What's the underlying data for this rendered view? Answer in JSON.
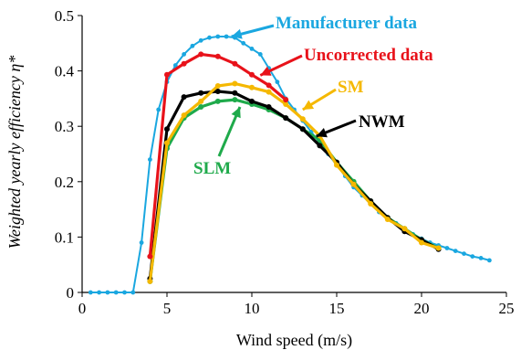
{
  "chart_data": {
    "type": "line",
    "xlabel": "Wind speed (m/s)",
    "ylabel": "Weighted yearly efficiency η*",
    "xlim": [
      0,
      25
    ],
    "ylim": [
      0,
      0.5
    ],
    "xticks": [
      0,
      5,
      10,
      15,
      20,
      25
    ],
    "yticks": [
      0,
      0.1,
      0.2,
      0.3,
      0.4,
      0.5
    ],
    "ytick_labels": [
      "0",
      "0.1",
      "0.2",
      "0.3",
      "0.4",
      "0.5"
    ],
    "grid": false,
    "series": [
      {
        "name": "Manufacturer data",
        "color": "#1aa7e0",
        "x": [
          0.5,
          1,
          1.5,
          2,
          2.5,
          3,
          3.5,
          4,
          4.5,
          5,
          5.5,
          6,
          6.5,
          7,
          7.5,
          8,
          8.5,
          9,
          9.5,
          10,
          10.5,
          11,
          11.5,
          12,
          12.5,
          13,
          13.5,
          14,
          14.5,
          15,
          15.5,
          16,
          16.5,
          17,
          17.5,
          18,
          18.5,
          19,
          19.5,
          20,
          20.5,
          21,
          21.5,
          22,
          22.5,
          23,
          23.5,
          24
        ],
        "y": [
          0,
          0,
          0,
          0,
          0,
          0,
          0.09,
          0.24,
          0.33,
          0.38,
          0.41,
          0.43,
          0.445,
          0.455,
          0.46,
          0.462,
          0.462,
          0.46,
          0.45,
          0.44,
          0.43,
          0.405,
          0.38,
          0.35,
          0.33,
          0.31,
          0.29,
          0.27,
          0.25,
          0.23,
          0.21,
          0.19,
          0.175,
          0.16,
          0.145,
          0.135,
          0.125,
          0.115,
          0.105,
          0.097,
          0.09,
          0.085,
          0.08,
          0.075,
          0.07,
          0.065,
          0.062,
          0.058
        ]
      },
      {
        "name": "Uncorrected data",
        "color": "#e8121a",
        "x": [
          4,
          5,
          6,
          7,
          8,
          9,
          10,
          11,
          12
        ],
        "y": [
          0.065,
          0.393,
          0.413,
          0.43,
          0.426,
          0.413,
          0.393,
          0.374,
          0.348
        ]
      },
      {
        "name": "SM",
        "color": "#f5b800",
        "x": [
          4,
          5,
          6,
          7,
          8,
          9,
          10,
          11,
          12,
          13,
          14,
          15,
          16,
          17,
          18,
          19,
          20,
          21
        ],
        "y": [
          0.02,
          0.27,
          0.32,
          0.345,
          0.373,
          0.377,
          0.37,
          0.362,
          0.34,
          0.313,
          0.283,
          0.23,
          0.195,
          0.16,
          0.132,
          0.115,
          0.09,
          0.08
        ]
      },
      {
        "name": "NWM",
        "color": "#000000",
        "x": [
          4,
          5,
          6,
          7,
          8,
          9,
          10,
          11,
          12,
          13,
          14,
          15,
          16,
          17,
          18,
          19,
          20,
          21
        ],
        "y": [
          0.025,
          0.295,
          0.353,
          0.36,
          0.363,
          0.36,
          0.345,
          0.335,
          0.315,
          0.295,
          0.265,
          0.235,
          0.195,
          0.165,
          0.135,
          0.11,
          0.095,
          0.078
        ]
      },
      {
        "name": "SLM",
        "color": "#1faa4b",
        "x": [
          4,
          5,
          6,
          7,
          8,
          9,
          10,
          11,
          12,
          13,
          14,
          15,
          16,
          17,
          18,
          19,
          20,
          21
        ],
        "y": [
          0.02,
          0.26,
          0.315,
          0.335,
          0.345,
          0.348,
          0.34,
          0.33,
          0.315,
          0.295,
          0.275,
          0.235,
          0.2,
          0.165,
          0.135,
          0.115,
          0.095,
          0.08
        ]
      }
    ],
    "annotations": [
      {
        "series": "Manufacturer data",
        "text": "Manufacturer data",
        "color": "#1aa7e0",
        "arrow_to": [
          8.8,
          0.462
        ]
      },
      {
        "series": "Uncorrected data",
        "text": "Uncorrected data",
        "color": "#e8121a",
        "arrow_to": [
          10.5,
          0.392
        ]
      },
      {
        "series": "SM",
        "text": "SM",
        "color": "#f5b800",
        "arrow_to": [
          13.0,
          0.33
        ]
      },
      {
        "series": "NWM",
        "text": "NWM",
        "color": "#000000",
        "arrow_to": [
          13.8,
          0.282
        ]
      },
      {
        "series": "SLM",
        "text": "SLM",
        "color": "#1faa4b",
        "arrow_to": [
          9.3,
          0.335
        ]
      }
    ]
  }
}
